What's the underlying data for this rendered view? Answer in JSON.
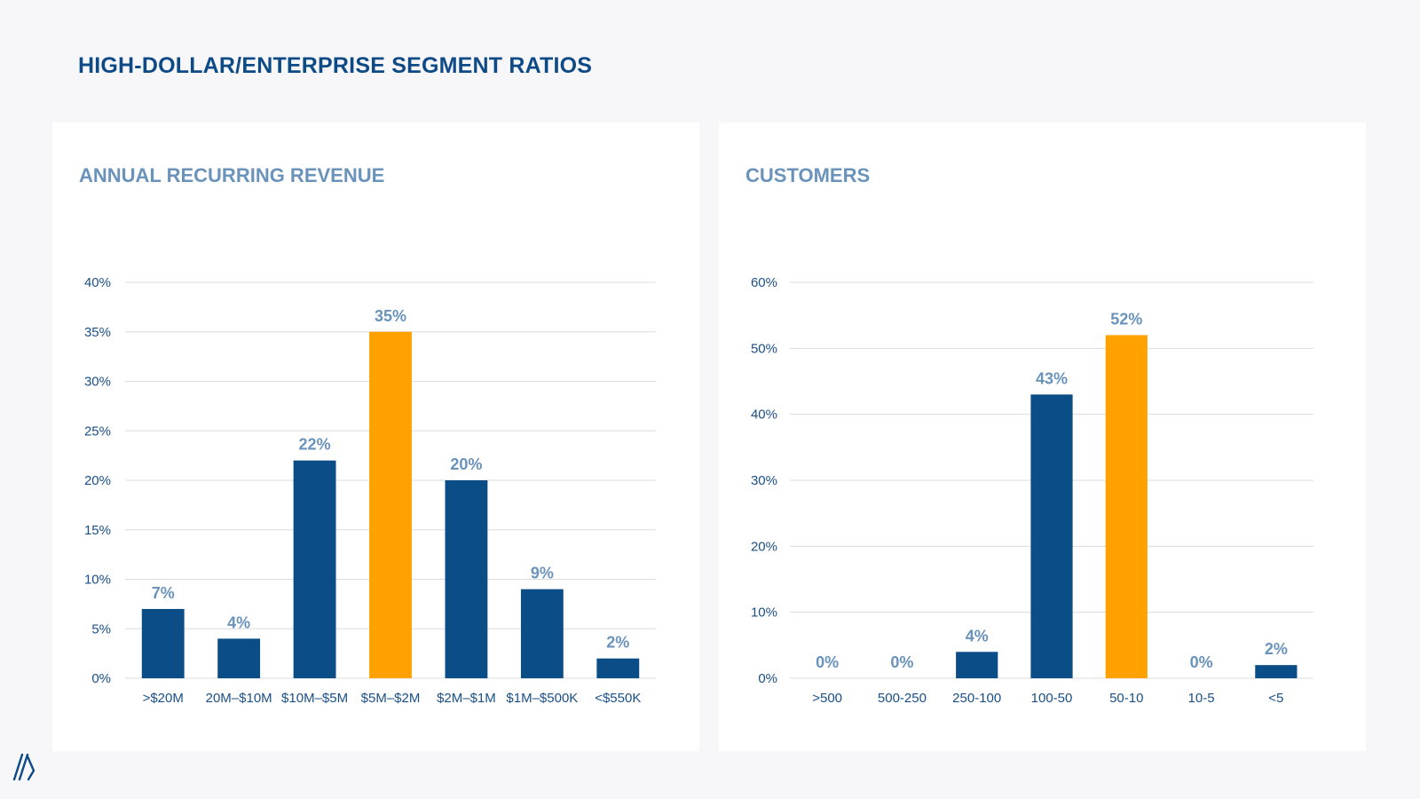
{
  "page": {
    "title": "HIGH-DOLLAR/ENTERPRISE SEGMENT RATIOS"
  },
  "colors": {
    "bar": "#0b4d87",
    "highlight": "#ffa200",
    "grid": "#dcdcdc",
    "tick_text": "#1a4f86",
    "data_label": "#6a93bb"
  },
  "chart_data": [
    {
      "type": "bar",
      "title": "ANNUAL RECURRING REVENUE",
      "xlabel": "",
      "ylabel": "",
      "categories": [
        ">$20M",
        "20M–$10M",
        "$10M–$5M",
        "$5M–$2M",
        "$2M–$1M",
        "$1M–$500K",
        "<$550K"
      ],
      "values": [
        7,
        4,
        22,
        35,
        20,
        9,
        2
      ],
      "data_labels": [
        "7%",
        "4%",
        "22%",
        "35%",
        "20%",
        "9%",
        "2%"
      ],
      "highlight_index": 3,
      "ylim": [
        0,
        40
      ],
      "yticks": [
        0,
        5,
        10,
        15,
        20,
        25,
        30,
        35,
        40
      ],
      "ytick_labels": [
        "0%",
        "5%",
        "10%",
        "15%",
        "20%",
        "25%",
        "30%",
        "35%",
        "40%"
      ],
      "grid": true
    },
    {
      "type": "bar",
      "title": "CUSTOMERS",
      "xlabel": "",
      "ylabel": "",
      "categories": [
        ">500",
        "500-250",
        "250-100",
        "100-50",
        "50-10",
        "10-5",
        "<5"
      ],
      "values": [
        0,
        0,
        4,
        43,
        52,
        0,
        2
      ],
      "data_labels": [
        "0%",
        "0%",
        "4%",
        "43%",
        "52%",
        "0%",
        "2%"
      ],
      "highlight_index": 4,
      "ylim": [
        0,
        60
      ],
      "yticks": [
        0,
        10,
        20,
        30,
        40,
        50,
        60
      ],
      "ytick_labels": [
        "0%",
        "10%",
        "20%",
        "30%",
        "40%",
        "50%",
        "60%"
      ],
      "grid": true
    }
  ]
}
